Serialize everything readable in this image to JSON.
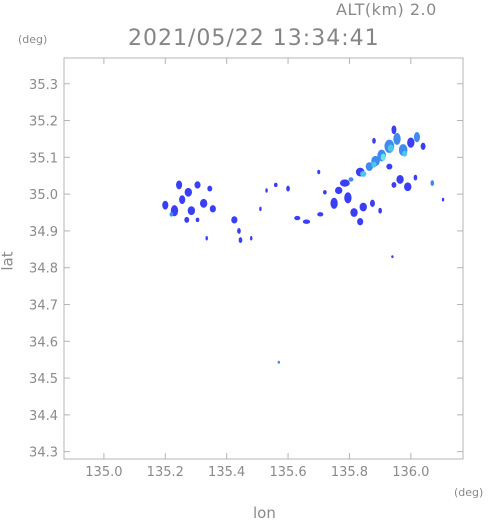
{
  "header": {
    "altitude": "ALT(km) 2.0",
    "datetime": "2021/05/22 13:34:41"
  },
  "units": {
    "y": "(deg)",
    "x": "(deg)"
  },
  "chart_data": {
    "type": "heatmap",
    "xlabel": "lon",
    "ylabel": "lat",
    "xlim": [
      134.87,
      136.17
    ],
    "ylim": [
      34.28,
      35.37
    ],
    "xticks": [
      "135.0",
      "135.2",
      "135.4",
      "135.6",
      "135.8",
      "136.0"
    ],
    "yticks": [
      "34.3",
      "34.4",
      "34.5",
      "34.6",
      "34.7",
      "34.8",
      "34.9",
      "35.0",
      "35.1",
      "35.2",
      "35.3"
    ],
    "grid": false,
    "colors": {
      "low": "#3a3ef5",
      "mid": "#3f8cf0",
      "high": "#48c8ee",
      "peak": "#66e8ee",
      "frame": "#b4b4b4"
    },
    "cells": [
      {
        "lon": 135.2,
        "lat": 34.97,
        "rlon": 0.01,
        "rlat": 0.012,
        "level": "low"
      },
      {
        "lon": 135.23,
        "lat": 34.955,
        "rlon": 0.012,
        "rlat": 0.015,
        "level": "low"
      },
      {
        "lon": 135.255,
        "lat": 34.985,
        "rlon": 0.01,
        "rlat": 0.012,
        "level": "low"
      },
      {
        "lon": 135.245,
        "lat": 35.025,
        "rlon": 0.01,
        "rlat": 0.012,
        "level": "low"
      },
      {
        "lon": 135.275,
        "lat": 35.005,
        "rlon": 0.012,
        "rlat": 0.012,
        "level": "low"
      },
      {
        "lon": 135.285,
        "lat": 34.955,
        "rlon": 0.012,
        "rlat": 0.012,
        "level": "low"
      },
      {
        "lon": 135.305,
        "lat": 35.025,
        "rlon": 0.01,
        "rlat": 0.01,
        "level": "low"
      },
      {
        "lon": 135.325,
        "lat": 34.975,
        "rlon": 0.012,
        "rlat": 0.012,
        "level": "low"
      },
      {
        "lon": 135.355,
        "lat": 34.96,
        "rlon": 0.01,
        "rlat": 0.01,
        "level": "low"
      },
      {
        "lon": 135.345,
        "lat": 35.015,
        "rlon": 0.008,
        "rlat": 0.008,
        "level": "low"
      },
      {
        "lon": 135.22,
        "lat": 34.945,
        "rlon": 0.006,
        "rlat": 0.006,
        "level": "mid"
      },
      {
        "lon": 135.27,
        "lat": 34.93,
        "rlon": 0.008,
        "rlat": 0.008,
        "level": "low"
      },
      {
        "lon": 135.305,
        "lat": 34.93,
        "rlon": 0.006,
        "rlat": 0.006,
        "level": "low"
      },
      {
        "lon": 135.335,
        "lat": 34.88,
        "rlon": 0.004,
        "rlat": 0.006,
        "level": "low"
      },
      {
        "lon": 135.425,
        "lat": 34.93,
        "rlon": 0.01,
        "rlat": 0.01,
        "level": "low"
      },
      {
        "lon": 135.44,
        "lat": 34.9,
        "rlon": 0.006,
        "rlat": 0.008,
        "level": "low"
      },
      {
        "lon": 135.445,
        "lat": 34.875,
        "rlon": 0.006,
        "rlat": 0.008,
        "level": "low"
      },
      {
        "lon": 135.48,
        "lat": 34.88,
        "rlon": 0.004,
        "rlat": 0.006,
        "level": "low"
      },
      {
        "lon": 135.51,
        "lat": 34.96,
        "rlon": 0.004,
        "rlat": 0.006,
        "level": "low"
      },
      {
        "lon": 135.53,
        "lat": 35.01,
        "rlon": 0.004,
        "rlat": 0.006,
        "level": "low"
      },
      {
        "lon": 135.56,
        "lat": 35.025,
        "rlon": 0.006,
        "rlat": 0.006,
        "level": "low"
      },
      {
        "lon": 135.6,
        "lat": 35.015,
        "rlon": 0.006,
        "rlat": 0.008,
        "level": "low"
      },
      {
        "lon": 135.63,
        "lat": 34.935,
        "rlon": 0.01,
        "rlat": 0.006,
        "level": "low"
      },
      {
        "lon": 135.66,
        "lat": 34.925,
        "rlon": 0.012,
        "rlat": 0.006,
        "level": "low"
      },
      {
        "lon": 135.705,
        "lat": 34.945,
        "rlon": 0.01,
        "rlat": 0.006,
        "level": "low"
      },
      {
        "lon": 135.72,
        "lat": 35.005,
        "rlon": 0.006,
        "rlat": 0.006,
        "level": "low"
      },
      {
        "lon": 135.7,
        "lat": 35.06,
        "rlon": 0.005,
        "rlat": 0.006,
        "level": "low"
      },
      {
        "lon": 135.75,
        "lat": 34.975,
        "rlon": 0.012,
        "rlat": 0.015,
        "level": "low"
      },
      {
        "lon": 135.765,
        "lat": 35.01,
        "rlon": 0.012,
        "rlat": 0.01,
        "level": "low"
      },
      {
        "lon": 135.795,
        "lat": 34.99,
        "rlon": 0.012,
        "rlat": 0.015,
        "level": "low"
      },
      {
        "lon": 135.815,
        "lat": 34.95,
        "rlon": 0.012,
        "rlat": 0.012,
        "level": "low"
      },
      {
        "lon": 135.845,
        "lat": 34.965,
        "rlon": 0.012,
        "rlat": 0.012,
        "level": "low"
      },
      {
        "lon": 135.835,
        "lat": 34.925,
        "rlon": 0.01,
        "rlat": 0.01,
        "level": "low"
      },
      {
        "lon": 135.875,
        "lat": 34.975,
        "rlon": 0.008,
        "rlat": 0.01,
        "level": "low"
      },
      {
        "lon": 135.9,
        "lat": 34.955,
        "rlon": 0.006,
        "rlat": 0.008,
        "level": "low"
      },
      {
        "lon": 135.785,
        "lat": 35.03,
        "rlon": 0.016,
        "rlat": 0.01,
        "level": "low"
      },
      {
        "lon": 135.805,
        "lat": 35.04,
        "rlon": 0.008,
        "rlat": 0.006,
        "level": "mid"
      },
      {
        "lon": 135.835,
        "lat": 35.06,
        "rlon": 0.014,
        "rlat": 0.012,
        "level": "low"
      },
      {
        "lon": 135.845,
        "lat": 35.055,
        "rlon": 0.01,
        "rlat": 0.008,
        "level": "high"
      },
      {
        "lon": 135.865,
        "lat": 35.075,
        "rlon": 0.012,
        "rlat": 0.012,
        "level": "mid"
      },
      {
        "lon": 135.885,
        "lat": 35.09,
        "rlon": 0.014,
        "rlat": 0.014,
        "level": "mid"
      },
      {
        "lon": 135.88,
        "lat": 35.08,
        "rlon": 0.008,
        "rlat": 0.008,
        "level": "high"
      },
      {
        "lon": 135.905,
        "lat": 35.105,
        "rlon": 0.014,
        "rlat": 0.016,
        "level": "mid"
      },
      {
        "lon": 135.91,
        "lat": 35.1,
        "rlon": 0.008,
        "rlat": 0.01,
        "level": "peak"
      },
      {
        "lon": 135.93,
        "lat": 35.13,
        "rlon": 0.016,
        "rlat": 0.018,
        "level": "mid"
      },
      {
        "lon": 135.935,
        "lat": 35.125,
        "rlon": 0.01,
        "rlat": 0.01,
        "level": "high"
      },
      {
        "lon": 135.955,
        "lat": 35.15,
        "rlon": 0.012,
        "rlat": 0.016,
        "level": "mid"
      },
      {
        "lon": 135.945,
        "lat": 35.175,
        "rlon": 0.008,
        "rlat": 0.012,
        "level": "low"
      },
      {
        "lon": 135.975,
        "lat": 35.12,
        "rlon": 0.014,
        "rlat": 0.016,
        "level": "mid"
      },
      {
        "lon": 135.98,
        "lat": 35.11,
        "rlon": 0.008,
        "rlat": 0.008,
        "level": "high"
      },
      {
        "lon": 136.0,
        "lat": 35.14,
        "rlon": 0.012,
        "rlat": 0.014,
        "level": "low"
      },
      {
        "lon": 136.02,
        "lat": 35.155,
        "rlon": 0.01,
        "rlat": 0.014,
        "level": "mid"
      },
      {
        "lon": 136.04,
        "lat": 35.13,
        "rlon": 0.008,
        "rlat": 0.01,
        "level": "low"
      },
      {
        "lon": 135.88,
        "lat": 35.145,
        "rlon": 0.006,
        "rlat": 0.008,
        "level": "low"
      },
      {
        "lon": 135.93,
        "lat": 35.075,
        "rlon": 0.01,
        "rlat": 0.008,
        "level": "low"
      },
      {
        "lon": 135.965,
        "lat": 35.04,
        "rlon": 0.012,
        "rlat": 0.012,
        "level": "low"
      },
      {
        "lon": 135.99,
        "lat": 35.02,
        "rlon": 0.012,
        "rlat": 0.012,
        "level": "low"
      },
      {
        "lon": 135.945,
        "lat": 35.025,
        "rlon": 0.008,
        "rlat": 0.008,
        "level": "low"
      },
      {
        "lon": 136.015,
        "lat": 35.045,
        "rlon": 0.006,
        "rlat": 0.008,
        "level": "low"
      },
      {
        "lon": 136.07,
        "lat": 35.03,
        "rlon": 0.006,
        "rlat": 0.008,
        "level": "mid"
      },
      {
        "lon": 136.105,
        "lat": 34.985,
        "rlon": 0.004,
        "rlat": 0.005,
        "level": "low"
      },
      {
        "lon": 135.94,
        "lat": 34.83,
        "rlon": 0.003,
        "rlat": 0.004,
        "level": "low"
      },
      {
        "lon": 135.57,
        "lat": 34.543,
        "rlon": 0.004,
        "rlat": 0.004,
        "level": "mid"
      }
    ]
  }
}
